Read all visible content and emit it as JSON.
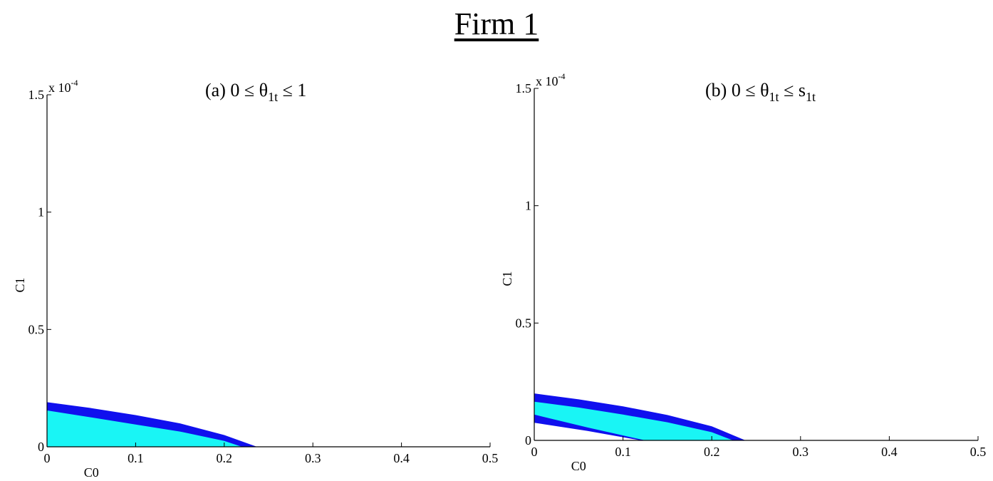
{
  "figure_title": "Firm 1",
  "colors": {
    "outer_region": "#1010ee",
    "inner_region": "#19f5f5",
    "axis": "#000000"
  },
  "chart_data": [
    {
      "type": "area",
      "title_prefix": "(a) 0 ≤ θ",
      "title_sub1": "1t",
      "title_mid": " ≤ 1",
      "title_sub2": "",
      "xlabel": "C0",
      "ylabel": "C1",
      "y_multiplier": "x 10",
      "y_multiplier_exp": "-4",
      "xlim": [
        0,
        0.5
      ],
      "ylim": [
        0,
        1.5
      ],
      "xticks": [
        0,
        0.1,
        0.2,
        0.3,
        0.4,
        0.5
      ],
      "xtick_labels": [
        "0",
        "0.1",
        "0.2",
        "0.3",
        "0.4",
        "0.5"
      ],
      "yticks": [
        0,
        0.5,
        1,
        1.5
      ],
      "ytick_labels": [
        "0",
        "0.5",
        "1",
        "1.5"
      ],
      "series": [
        {
          "color": "#1010ee",
          "points": [
            [
              0,
              0
            ],
            [
              0,
              0.19
            ],
            [
              0.05,
              0.165
            ],
            [
              0.1,
              0.135
            ],
            [
              0.15,
              0.1
            ],
            [
              0.2,
              0.05
            ],
            [
              0.237,
              0
            ],
            [
              0,
              0
            ]
          ]
        },
        {
          "color": "#19f5f5",
          "points": [
            [
              0,
              0
            ],
            [
              0,
              0.155
            ],
            [
              0.05,
              0.125
            ],
            [
              0.1,
              0.095
            ],
            [
              0.15,
              0.065
            ],
            [
              0.2,
              0.025
            ],
            [
              0.22,
              0
            ],
            [
              0,
              0
            ]
          ]
        }
      ]
    },
    {
      "type": "area",
      "title_prefix": "(b) 0 ≤ θ",
      "title_sub1": "1t",
      "title_mid": " ≤ s",
      "title_sub2": "1t",
      "xlabel": "C0",
      "ylabel": "C1",
      "y_multiplier": "x 10",
      "y_multiplier_exp": "-4",
      "xlim": [
        0,
        0.5
      ],
      "ylim": [
        0,
        1.5
      ],
      "xticks": [
        0,
        0.1,
        0.2,
        0.3,
        0.4,
        0.5
      ],
      "xtick_labels": [
        "0",
        "0.1",
        "0.2",
        "0.3",
        "0.4",
        "0.5"
      ],
      "yticks": [
        0,
        0.5,
        1,
        1.5
      ],
      "ytick_labels": [
        "0",
        "0.5",
        "1",
        "1.5"
      ],
      "series": [
        {
          "color": "#1010ee",
          "points": [
            [
              0,
              0.075
            ],
            [
              0,
              0.2
            ],
            [
              0.05,
              0.175
            ],
            [
              0.1,
              0.145
            ],
            [
              0.15,
              0.108
            ],
            [
              0.2,
              0.06
            ],
            [
              0.238,
              0
            ],
            [
              0.12,
              0
            ],
            [
              0.06,
              0.04
            ],
            [
              0,
              0.075
            ]
          ]
        },
        {
          "color": "#19f5f5",
          "points": [
            [
              0,
              0.11
            ],
            [
              0,
              0.165
            ],
            [
              0.05,
              0.14
            ],
            [
              0.1,
              0.11
            ],
            [
              0.15,
              0.077
            ],
            [
              0.2,
              0.035
            ],
            [
              0.224,
              0
            ],
            [
              0.125,
              0
            ],
            [
              0.06,
              0.055
            ],
            [
              0,
              0.11
            ]
          ]
        }
      ]
    }
  ]
}
